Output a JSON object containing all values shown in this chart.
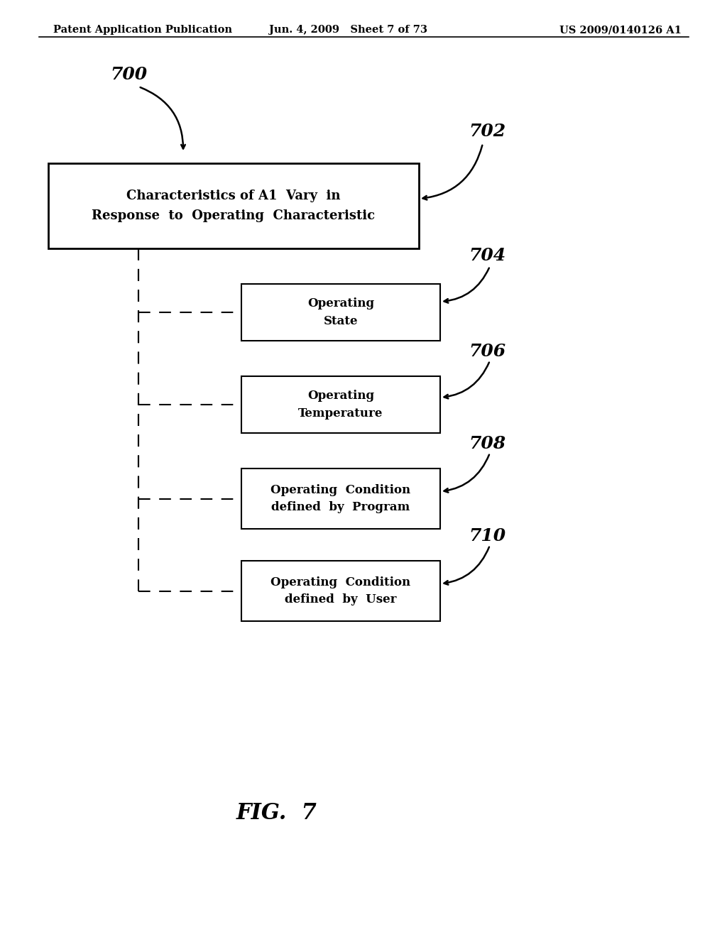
{
  "background_color": "#ffffff",
  "header_left": "Patent Application Publication",
  "header_mid": "Jun. 4, 2009   Sheet 7 of 73",
  "header_right": "US 2009/0140126 A1",
  "header_fontsize": 10.5,
  "fig_label": "FIG.  7",
  "fig_label_fontsize": 20,
  "label_700": "700",
  "label_702": "702",
  "label_704": "704",
  "label_706": "706",
  "label_708": "708",
  "label_710": "710",
  "box_702_text": "Characteristics of A1  Vary  in\nResponse  to  Operating  Characteristic",
  "box_704_text": "Operating\nState",
  "box_706_text": "Operating\nTemperature",
  "box_708_text": "Operating  Condition\ndefined  by  Program",
  "box_710_text": "Operating  Condition\ndefined  by  User",
  "text_fontsize": 12,
  "label_fontsize": 15
}
